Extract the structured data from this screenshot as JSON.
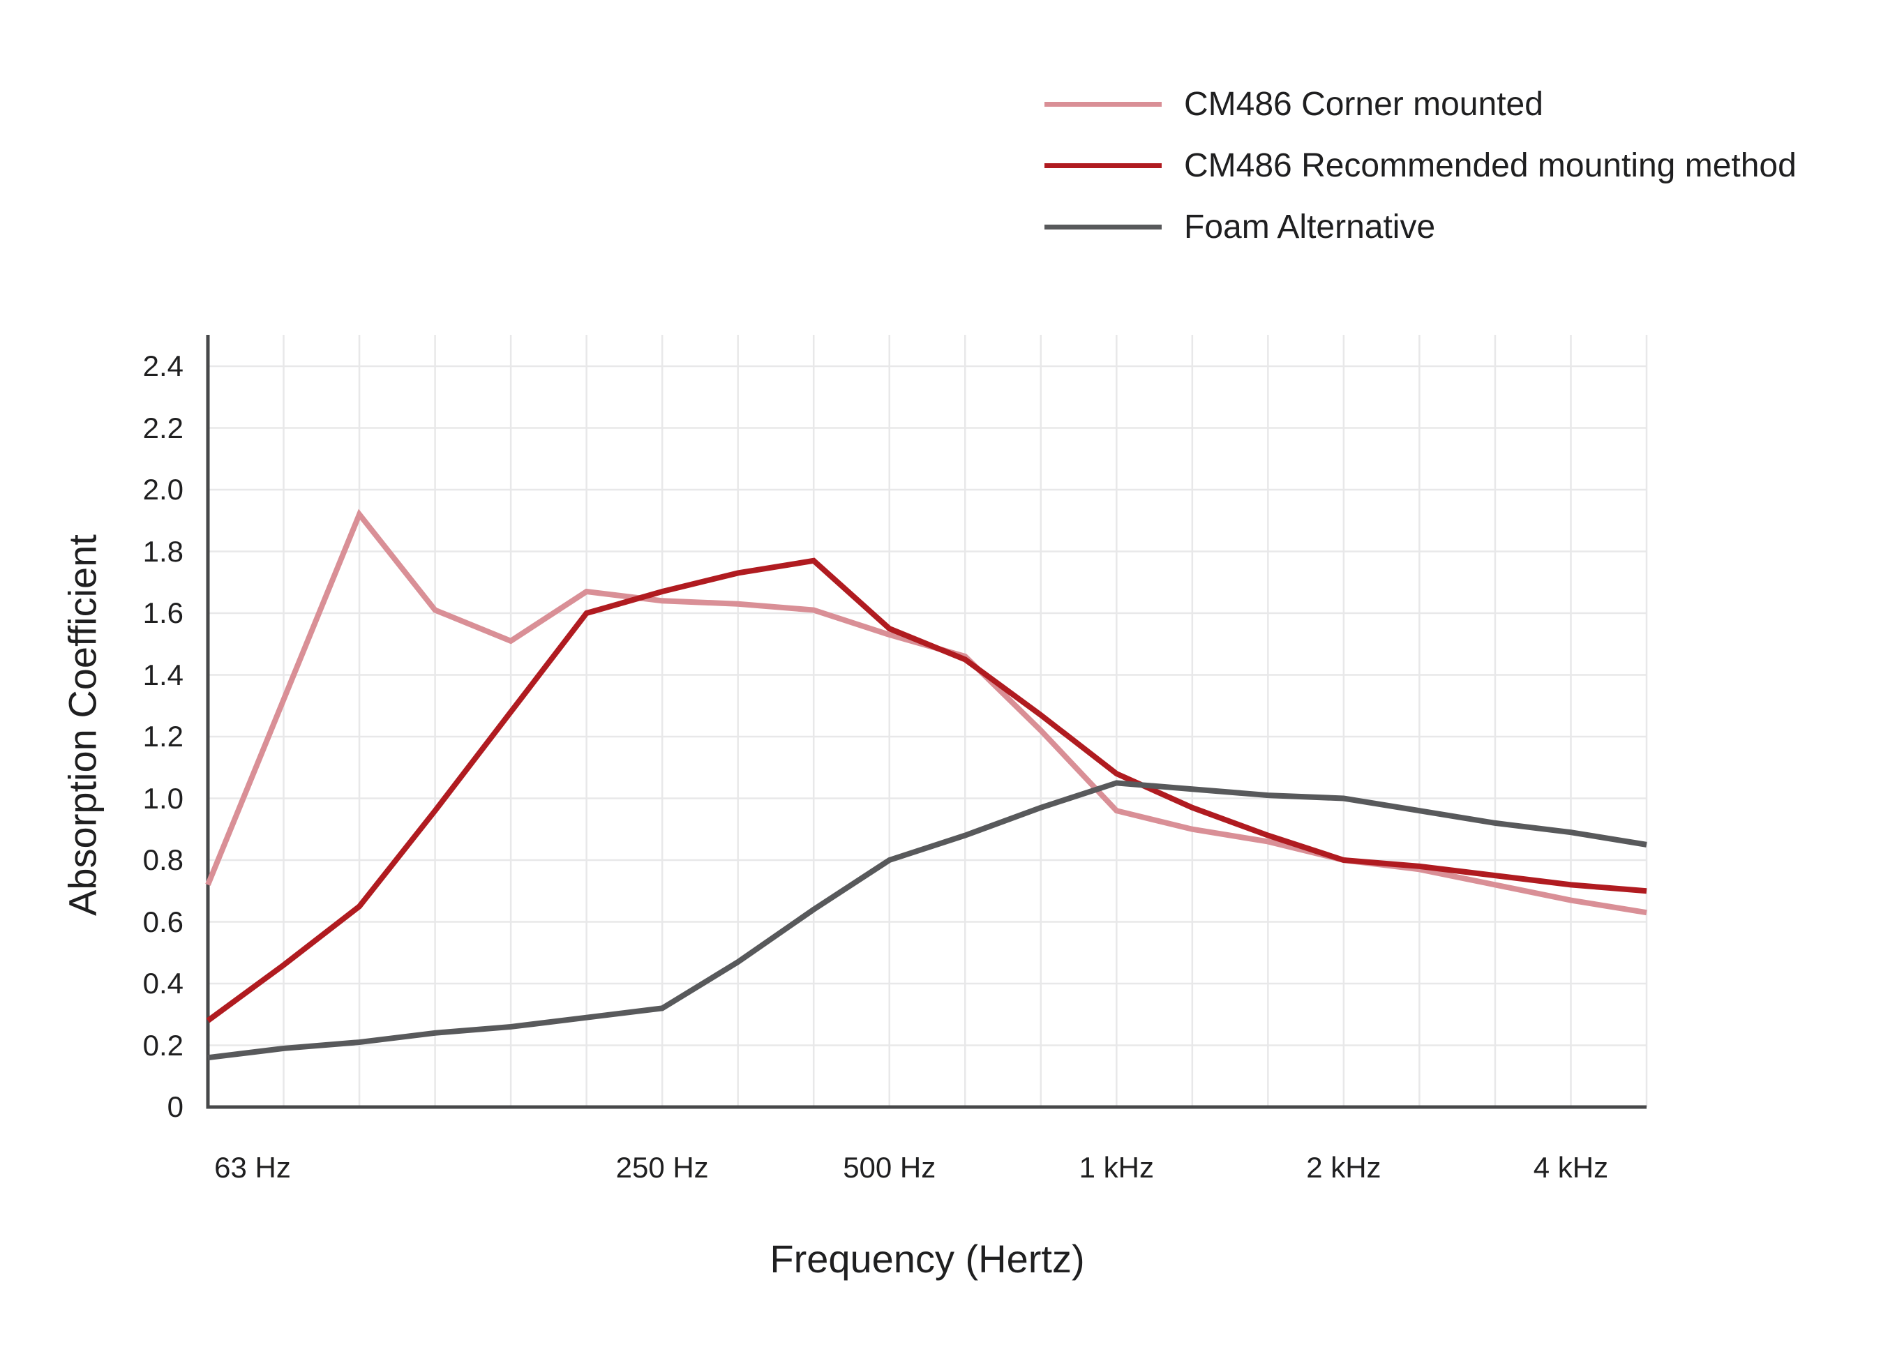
{
  "chart_data": {
    "type": "line",
    "title": "",
    "xlabel": "Frequency (Hertz)",
    "ylabel": "Absorption Coefficient",
    "x_scale": "log (third-octave bands, evenly spaced)",
    "categories_hz": [
      63,
      80,
      100,
      125,
      160,
      200,
      250,
      315,
      400,
      500,
      630,
      800,
      1000,
      1250,
      1600,
      2000,
      2500,
      3150,
      4000,
      5000
    ],
    "x_tick_labels": [
      {
        "label": "63 Hz",
        "band": 0,
        "dx": 64
      },
      {
        "label": "250 Hz",
        "band": 6,
        "dx": 0
      },
      {
        "label": "500 Hz",
        "band": 9,
        "dx": 0
      },
      {
        "label": "1 kHz",
        "band": 12,
        "dx": 0
      },
      {
        "label": "2 kHz",
        "band": 15,
        "dx": 0
      },
      {
        "label": "4 kHz",
        "band": 18,
        "dx": 0
      }
    ],
    "y_ticks": [
      {
        "label": "0",
        "value": 0
      },
      {
        "label": "0.2",
        "value": 0.2
      },
      {
        "label": "0.4",
        "value": 0.4
      },
      {
        "label": "0.6",
        "value": 0.6
      },
      {
        "label": "0.8",
        "value": 0.8
      },
      {
        "label": "1.0",
        "value": 1.0
      },
      {
        "label": "1.2",
        "value": 1.2
      },
      {
        "label": "1.4",
        "value": 1.4
      },
      {
        "label": "1.6",
        "value": 1.6
      },
      {
        "label": "1.8",
        "value": 1.8
      },
      {
        "label": "2.0",
        "value": 2.0
      },
      {
        "label": "2.2",
        "value": 2.2
      },
      {
        "label": "2.4",
        "value": 2.4
      }
    ],
    "ylim": [
      0,
      2.5
    ],
    "grid": true,
    "legend_position": "top-right",
    "series": [
      {
        "name": "CM486 Corner mounted",
        "color": "#d98f96",
        "values": [
          0.72,
          1.32,
          1.92,
          1.61,
          1.51,
          1.67,
          1.64,
          1.63,
          1.61,
          1.53,
          1.46,
          1.22,
          0.96,
          0.9,
          0.86,
          0.8,
          0.77,
          0.72,
          0.67,
          0.63
        ]
      },
      {
        "name": "CM486 Recommended mounting method",
        "color": "#b01b20",
        "values": [
          0.28,
          0.46,
          0.65,
          0.96,
          1.28,
          1.6,
          1.67,
          1.73,
          1.77,
          1.55,
          1.45,
          1.27,
          1.08,
          0.97,
          0.88,
          0.8,
          0.78,
          0.75,
          0.72,
          0.7
        ]
      },
      {
        "name": "Foam Alternative",
        "color": "#58595b",
        "values": [
          0.16,
          0.19,
          0.21,
          0.24,
          0.26,
          0.29,
          0.32,
          0.47,
          0.64,
          0.8,
          0.88,
          0.97,
          1.05,
          1.03,
          1.01,
          1.0,
          0.96,
          0.92,
          0.89,
          0.85
        ]
      }
    ],
    "style": {
      "grid_color": "#e8e8e9",
      "axis_color": "#47484a",
      "text_color": "#1f1f20",
      "background": "#ffffff"
    }
  }
}
